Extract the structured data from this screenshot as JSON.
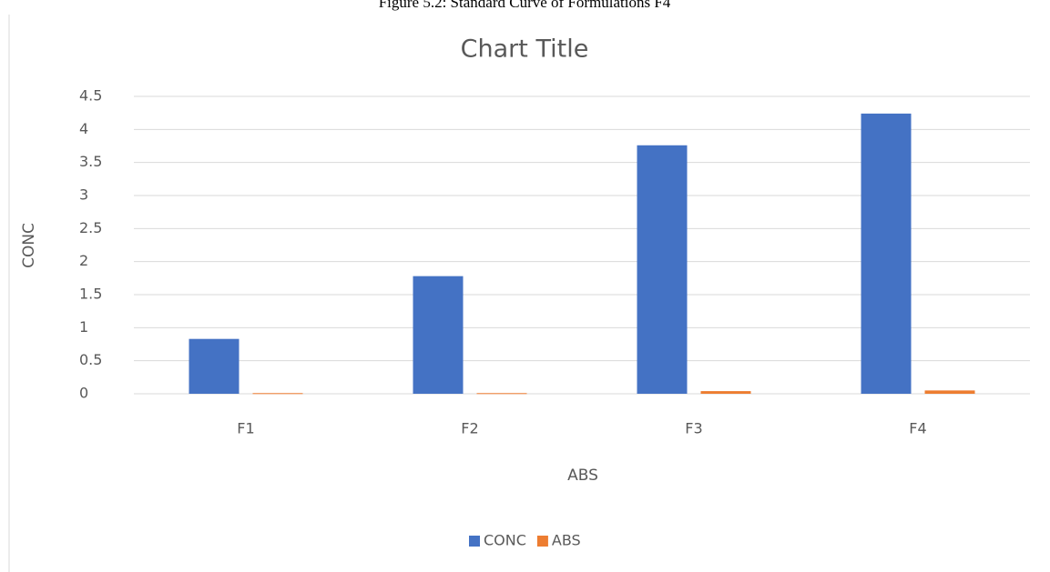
{
  "caption": "Figure 5.2: Standard Curve of Formulations F4",
  "chart_data": {
    "type": "bar",
    "title": "Chart Title",
    "x_label": "ABS",
    "y_label": "CONC",
    "categories": [
      "F1",
      "F2",
      "F3",
      "F4"
    ],
    "series": [
      {
        "name": "CONC",
        "color": "#4472c4",
        "values": [
          0.83,
          1.78,
          3.76,
          4.24
        ]
      },
      {
        "name": "ABS",
        "color": "#ed7d31",
        "values": [
          0.01,
          0.01,
          0.04,
          0.05
        ]
      }
    ],
    "ylim": [
      0,
      4.5
    ],
    "yticks": [
      0,
      0.5,
      1,
      1.5,
      2,
      2.5,
      3,
      3.5,
      4,
      4.5
    ],
    "grid": true,
    "legend": "bottom"
  }
}
